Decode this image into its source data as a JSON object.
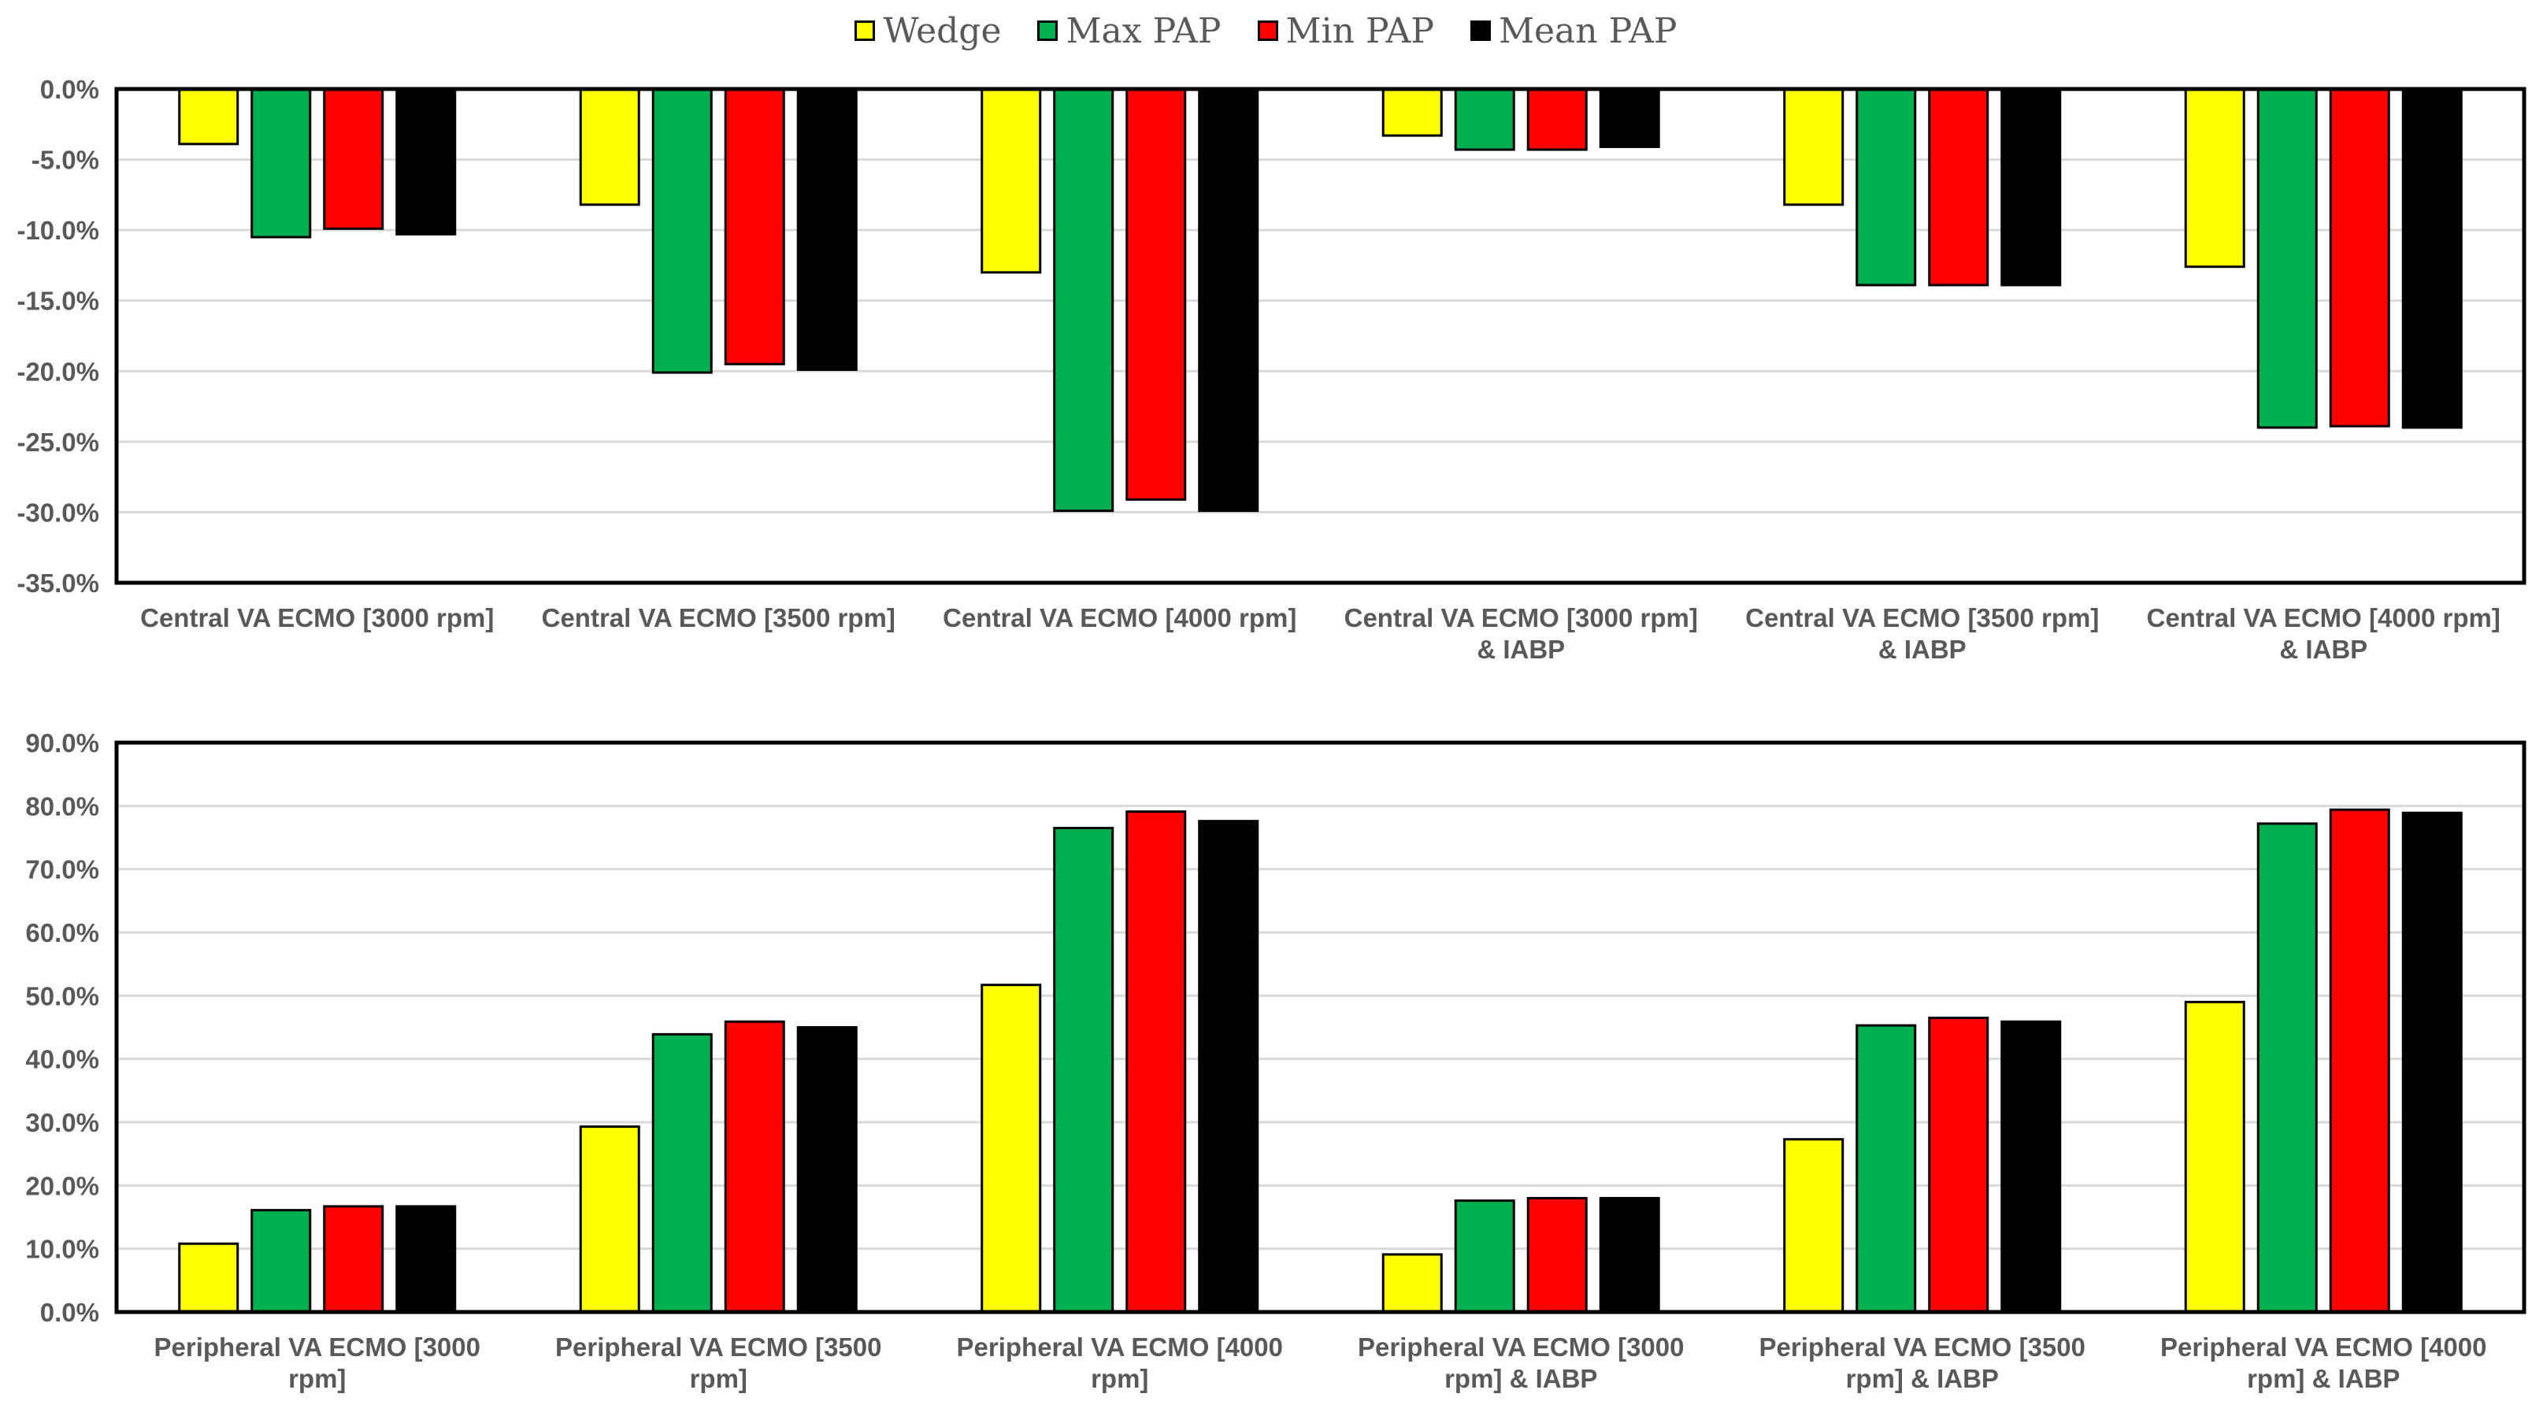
{
  "legend": [
    {
      "label": "Wedge",
      "color": "#FFFF00"
    },
    {
      "label": "Max PAP",
      "color": "#00B050"
    },
    {
      "label": "Min PAP",
      "color": "#FF0000"
    },
    {
      "label": "Mean PAP",
      "color": "#000000"
    }
  ],
  "chart_data": [
    {
      "type": "bar",
      "title": "",
      "xlabel": "",
      "ylabel": "",
      "ylim": [
        -35,
        0
      ],
      "yticks": [
        0,
        -5,
        -10,
        -15,
        -20,
        -25,
        -30,
        -35
      ],
      "ytick_labels": [
        "0.0%",
        "-5.0%",
        "-10.0%",
        "-15.0%",
        "-20.0%",
        "-25.0%",
        "-30.0%",
        "-35.0%"
      ],
      "grid": true,
      "categories": [
        [
          "Central VA ECMO [3000 rpm]"
        ],
        [
          "Central VA ECMO [3500 rpm]"
        ],
        [
          "Central VA ECMO [4000 rpm]"
        ],
        [
          "Central VA ECMO [3000 rpm]",
          "& IABP"
        ],
        [
          "Central VA ECMO [3500 rpm]",
          "& IABP"
        ],
        [
          "Central VA ECMO [4000 rpm]",
          "& IABP"
        ]
      ],
      "series": [
        {
          "name": "Wedge",
          "values": [
            -3.9,
            -8.2,
            -13.0,
            -3.3,
            -8.2,
            -12.6
          ]
        },
        {
          "name": "Max PAP",
          "values": [
            -10.5,
            -20.1,
            -29.9,
            -4.3,
            -13.9,
            -24.0
          ]
        },
        {
          "name": "Min PAP",
          "values": [
            -9.9,
            -19.5,
            -29.1,
            -4.3,
            -13.9,
            -23.9
          ]
        },
        {
          "name": "Mean PAP",
          "values": [
            -10.3,
            -19.9,
            -29.9,
            -4.1,
            -13.9,
            -24.0
          ]
        }
      ]
    },
    {
      "type": "bar",
      "title": "",
      "xlabel": "",
      "ylabel": "",
      "ylim": [
        0,
        90
      ],
      "yticks": [
        0,
        10,
        20,
        30,
        40,
        50,
        60,
        70,
        80,
        90
      ],
      "ytick_labels": [
        "0.0%",
        "10.0%",
        "20.0%",
        "30.0%",
        "40.0%",
        "50.0%",
        "60.0%",
        "70.0%",
        "80.0%",
        "90.0%"
      ],
      "grid": true,
      "categories": [
        [
          "Peripheral VA ECMO [3000",
          "rpm]"
        ],
        [
          "Peripheral VA ECMO [3500",
          "rpm]"
        ],
        [
          "Peripheral VA ECMO [4000",
          "rpm]"
        ],
        [
          "Peripheral VA  ECMO [3000",
          "rpm] & IABP"
        ],
        [
          "Peripheral VA ECMO [3500",
          "rpm] & IABP"
        ],
        [
          "Peripheral VA ECMO [4000",
          "rpm] & IABP"
        ]
      ],
      "series": [
        {
          "name": "Wedge",
          "values": [
            10.8,
            29.3,
            51.7,
            9.1,
            27.3,
            49.0
          ]
        },
        {
          "name": "Max PAP",
          "values": [
            16.1,
            43.9,
            76.5,
            17.6,
            45.3,
            77.2
          ]
        },
        {
          "name": "Min PAP",
          "values": [
            16.7,
            45.9,
            79.1,
            18.0,
            46.5,
            79.4
          ]
        },
        {
          "name": "Mean PAP",
          "values": [
            16.7,
            45.0,
            77.6,
            18.0,
            45.9,
            78.9
          ]
        }
      ]
    }
  ]
}
